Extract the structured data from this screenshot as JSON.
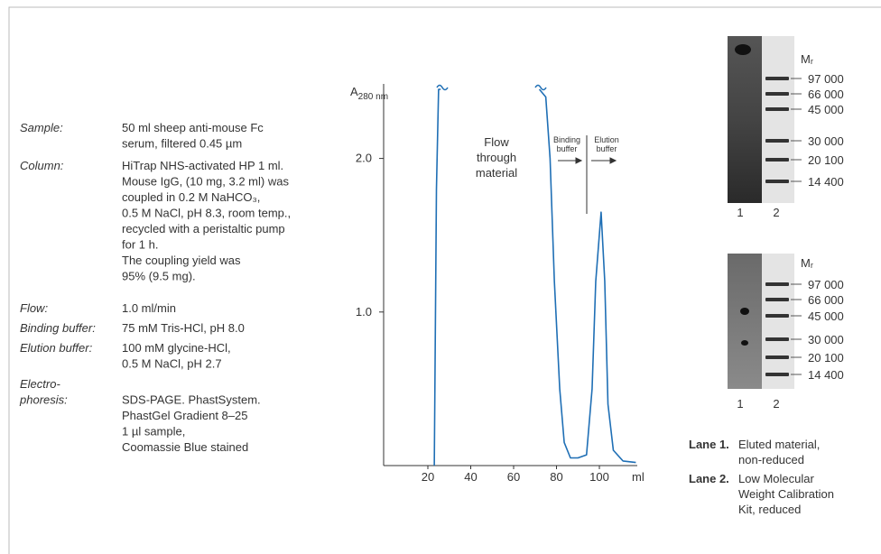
{
  "conditions": [
    {
      "label": [
        "Sample:"
      ],
      "lines": [
        "50 ml sheep anti-mouse Fc",
        "serum, filtered 0.45 µm"
      ]
    },
    {
      "label": [
        "Column:"
      ],
      "lines": [
        "HiTrap NHS-activated HP 1 ml.",
        "Mouse IgG, (10 mg, 3.2 ml) was",
        "coupled in 0.2 M NaHCO₃,",
        "0.5 M NaCl, pH 8.3, room temp.,",
        "recycled with a peristaltic pump",
        "for 1 h.",
        "The coupling yield was",
        "95% (9.5 mg)."
      ]
    },
    {
      "label": [
        "Flow:"
      ],
      "lines": [
        "1.0 ml/min"
      ]
    },
    {
      "label": [
        "Binding buffer:"
      ],
      "lines": [
        "75 mM Tris-HCl, pH 8.0"
      ]
    },
    {
      "label": [
        "Elution buffer:"
      ],
      "lines": [
        "100 mM glycine-HCl,",
        "0.5 M NaCl, pH 2.7"
      ]
    },
    {
      "label": [
        "Electro-",
        "phoresis:"
      ],
      "lines": [
        "SDS-PAGE. PhastSystem.",
        "PhastGel Gradient 8–25",
        "1 µl sample,",
        "Coomassie Blue stained"
      ]
    }
  ],
  "chart_data": {
    "type": "line",
    "y_label": "A",
    "y_label_sub": "280 nm",
    "x_unit": "ml",
    "annotations": {
      "flow": [
        "Flow",
        "through",
        "material"
      ],
      "binding": [
        "Binding",
        "buffer"
      ],
      "elution": [
        "Elution",
        "buffer"
      ]
    },
    "x": [
      23,
      24,
      25,
      26,
      50,
      72,
      75,
      77,
      79,
      81.5,
      83.6,
      86.5,
      90,
      94,
      96.6,
      98.3,
      100.8,
      102.5,
      104,
      106.5,
      111,
      117
    ],
    "series": [
      {
        "name": "A280",
        "color": "#1f6fb5",
        "values": [
          0,
          1.8,
          2.45,
          2.45,
          null,
          2.45,
          2.4,
          2.0,
          1.2,
          0.5,
          0.15,
          0.05,
          0.05,
          0.07,
          0.5,
          1.2,
          1.65,
          1.2,
          0.4,
          0.1,
          0.03,
          0.02
        ]
      }
    ],
    "xlim": [
      0,
      117
    ],
    "ylim": [
      0,
      2.47
    ],
    "xticks": [
      20,
      40,
      60,
      80,
      100
    ],
    "yticks": [
      {
        "value": 1,
        "label": "1.0"
      },
      {
        "value": 2,
        "label": "2.0"
      }
    ]
  },
  "gels": [
    {
      "mr_label": "Mᵣ",
      "markers": [
        "97 000",
        "66 000",
        "45 000",
        "30 000",
        "20 100",
        "14 400"
      ],
      "lanes": [
        "1",
        "2"
      ]
    },
    {
      "mr_label": "Mᵣ",
      "markers": [
        "97 000",
        "66 000",
        "45 000",
        "30 000",
        "20 100",
        "14 400"
      ],
      "lanes": [
        "1",
        "2"
      ]
    }
  ],
  "lane_legend": [
    {
      "lane": "Lane 1.",
      "lines": [
        "Eluted material,",
        "non-reduced"
      ]
    },
    {
      "lane": "Lane 2.",
      "lines": [
        "Low Molecular",
        "Weight Calibration",
        "Kit, reduced"
      ]
    }
  ]
}
